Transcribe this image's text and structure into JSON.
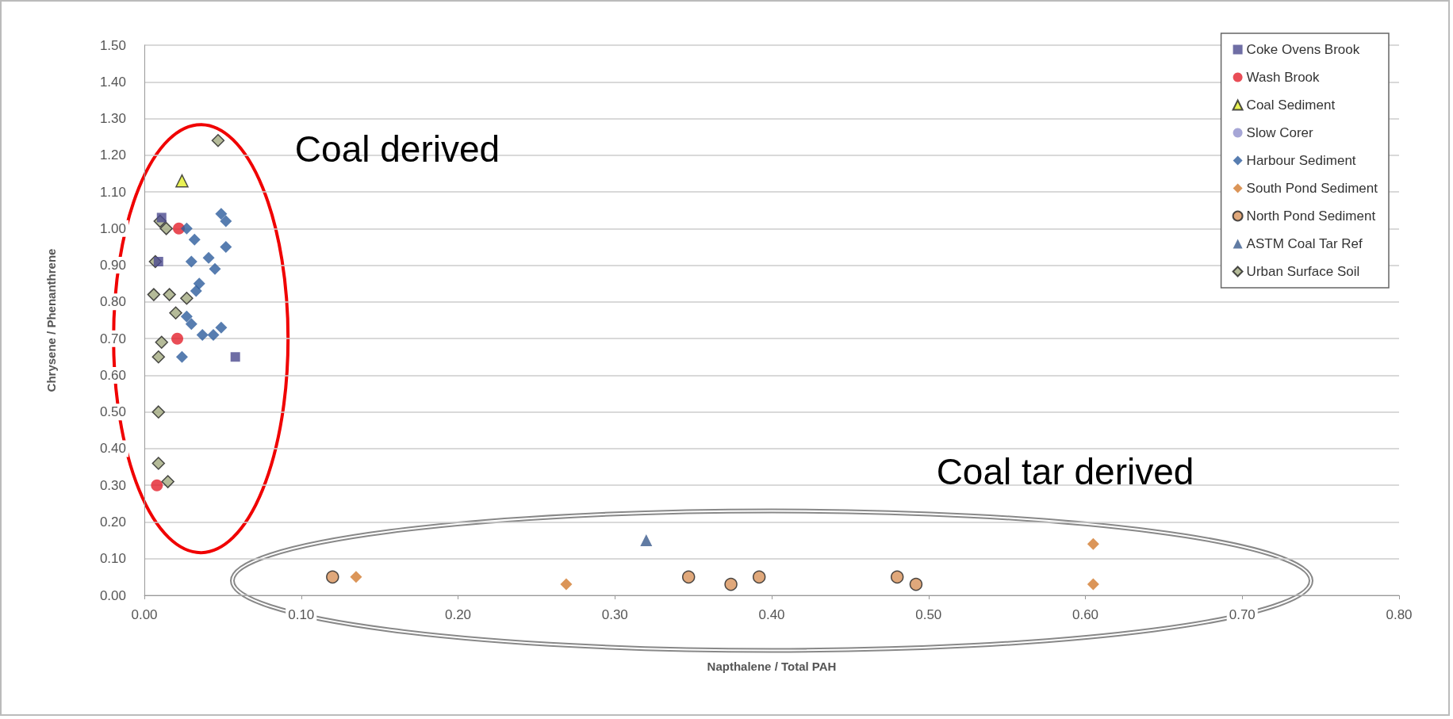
{
  "chart_data": {
    "type": "scatter",
    "xlabel": "Napthalene / Total PAH",
    "ylabel": "Chrysene / Phenanthrene",
    "annotations": [
      "Coal derived",
      "Coal tar derived"
    ],
    "xlim": [
      0,
      0.8
    ],
    "ylim": [
      0,
      1.5
    ],
    "xticks": [
      {
        "value": 0,
        "label": "0.00"
      },
      {
        "value": 0.1,
        "label": "0.10"
      },
      {
        "value": 0.2,
        "label": "0.20"
      },
      {
        "value": 0.3,
        "label": "0.30"
      },
      {
        "value": 0.4,
        "label": "0.40"
      },
      {
        "value": 0.5,
        "label": "0.50"
      },
      {
        "value": 0.6,
        "label": "0.60"
      },
      {
        "value": 0.7,
        "label": "0.70"
      },
      {
        "value": 0.8,
        "label": "0.80"
      }
    ],
    "yticks": [
      {
        "value": 0,
        "label": "0.00"
      },
      {
        "value": 0.1,
        "label": "0.10"
      },
      {
        "value": 0.2,
        "label": "0.20"
      },
      {
        "value": 0.3,
        "label": "0.30"
      },
      {
        "value": 0.4,
        "label": "0.40"
      },
      {
        "value": 0.5,
        "label": "0.50"
      },
      {
        "value": 0.6,
        "label": "0.60"
      },
      {
        "value": 0.7,
        "label": "0.70"
      },
      {
        "value": 0.8,
        "label": "0.80"
      },
      {
        "value": 0.9,
        "label": "0.90"
      },
      {
        "value": 1.0,
        "label": "1.00"
      },
      {
        "value": 1.1,
        "label": "1.10"
      },
      {
        "value": 1.2,
        "label": "1.20"
      },
      {
        "value": 1.3,
        "label": "1.30"
      },
      {
        "value": 1.4,
        "label": "1.40"
      },
      {
        "value": 1.5,
        "label": "1.50"
      }
    ],
    "grid": "y",
    "legend": "top right",
    "series": [
      {
        "name": "Coke Ovens Brook",
        "color": "#4b4a8f",
        "marker": "square",
        "x": [
          0.011,
          0.009,
          0.058
        ],
        "values": [
          1.03,
          0.91,
          0.65
        ]
      },
      {
        "name": "Wash Brook",
        "color": "#e3202c",
        "marker": "circle",
        "x": [
          0.022,
          0.021,
          0.008
        ],
        "values": [
          1.0,
          0.7,
          0.3
        ]
      },
      {
        "name": "Coal Sediment",
        "color": "#e4ef2a",
        "marker": "triangle",
        "x": [
          0.024
        ],
        "values": [
          1.13
        ]
      },
      {
        "name": "Slow Corer",
        "color": "#9090cc",
        "marker": "circle"
      },
      {
        "name": "Harbour Sediment",
        "color": "#2d5c9c",
        "marker": "diamond",
        "x": [
          0.027,
          0.032,
          0.049,
          0.052,
          0.052,
          0.03,
          0.041,
          0.045,
          0.035,
          0.033,
          0.027,
          0.03,
          0.037,
          0.044,
          0.049,
          0.024
        ],
        "values": [
          1.0,
          0.97,
          1.04,
          1.02,
          0.95,
          0.91,
          0.92,
          0.89,
          0.85,
          0.83,
          0.76,
          0.74,
          0.71,
          0.71,
          0.73,
          0.65
        ]
      },
      {
        "name": "South Pond Sediment",
        "color": "#d27a2e",
        "marker": "diamond",
        "x": [
          0.135,
          0.269,
          0.605,
          0.605
        ],
        "values": [
          0.05,
          0.03,
          0.14,
          0.03
        ]
      },
      {
        "name": "North Pond Sediment",
        "color": "#d8925a",
        "marker": "circle",
        "x": [
          0.12,
          0.347,
          0.374,
          0.392,
          0.48,
          0.492
        ],
        "values": [
          0.05,
          0.05,
          0.03,
          0.05,
          0.05,
          0.03
        ]
      },
      {
        "name": "ASTM Coal Tar Ref",
        "color": "#3a5a8c",
        "marker": "triangle",
        "x": [
          0.32
        ],
        "values": [
          0.15
        ]
      },
      {
        "name": "Urban Surface Soil",
        "color": "#a3aa80",
        "marker": "diamond",
        "x": [
          0.047,
          0.01,
          0.014,
          0.007,
          0.006,
          0.016,
          0.027,
          0.02,
          0.011,
          0.009,
          0.009,
          0.009,
          0.015
        ],
        "values": [
          1.24,
          1.02,
          1.0,
          0.91,
          0.82,
          0.82,
          0.81,
          0.77,
          0.69,
          0.65,
          0.5,
          0.36,
          0.31
        ]
      }
    ]
  }
}
